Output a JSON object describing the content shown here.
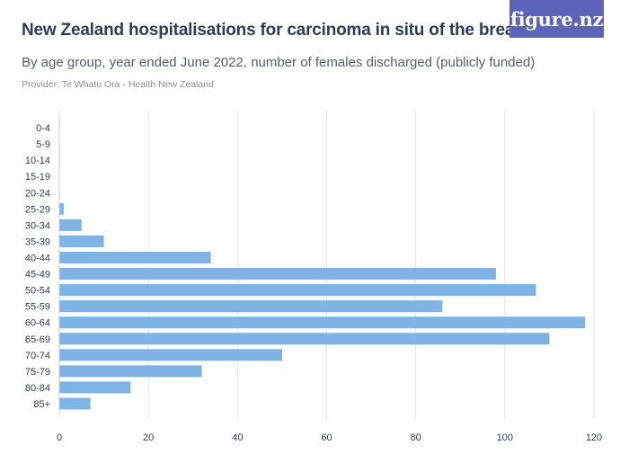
{
  "header": {
    "title": "New Zealand hospitalisations for carcinoma in situ of the breast",
    "subtitle": "By age group, year ended June 2022, number of females discharged (publicly funded)",
    "provider": "Provider: Te Whatu Ora - Health New Zealand"
  },
  "logo": {
    "text": "figure.nz",
    "color": "#5c63b8"
  },
  "colors": {
    "bar": "#7eb3e3",
    "grid": "#e3e5e8",
    "axis_text": "#2e3d55"
  },
  "chart_data": {
    "type": "bar",
    "orientation": "horizontal",
    "title": "New Zealand hospitalisations for carcinoma in situ of the breast",
    "subtitle": "By age group, year ended June 2022, number of females discharged (publicly funded)",
    "categories": [
      "0-4",
      "5-9",
      "10-14",
      "15-19",
      "20-24",
      "25-29",
      "30-34",
      "35-39",
      "40-44",
      "45-49",
      "50-54",
      "55-59",
      "60-64",
      "65-69",
      "70-74",
      "75-79",
      "80-84",
      "85+"
    ],
    "values": [
      0,
      0,
      0,
      0,
      0,
      1,
      5,
      10,
      34,
      98,
      107,
      86,
      118,
      110,
      50,
      32,
      16,
      7
    ],
    "xlim": [
      0,
      120
    ],
    "xticks": [
      0,
      20,
      40,
      60,
      80,
      100,
      120
    ],
    "grid": true
  }
}
